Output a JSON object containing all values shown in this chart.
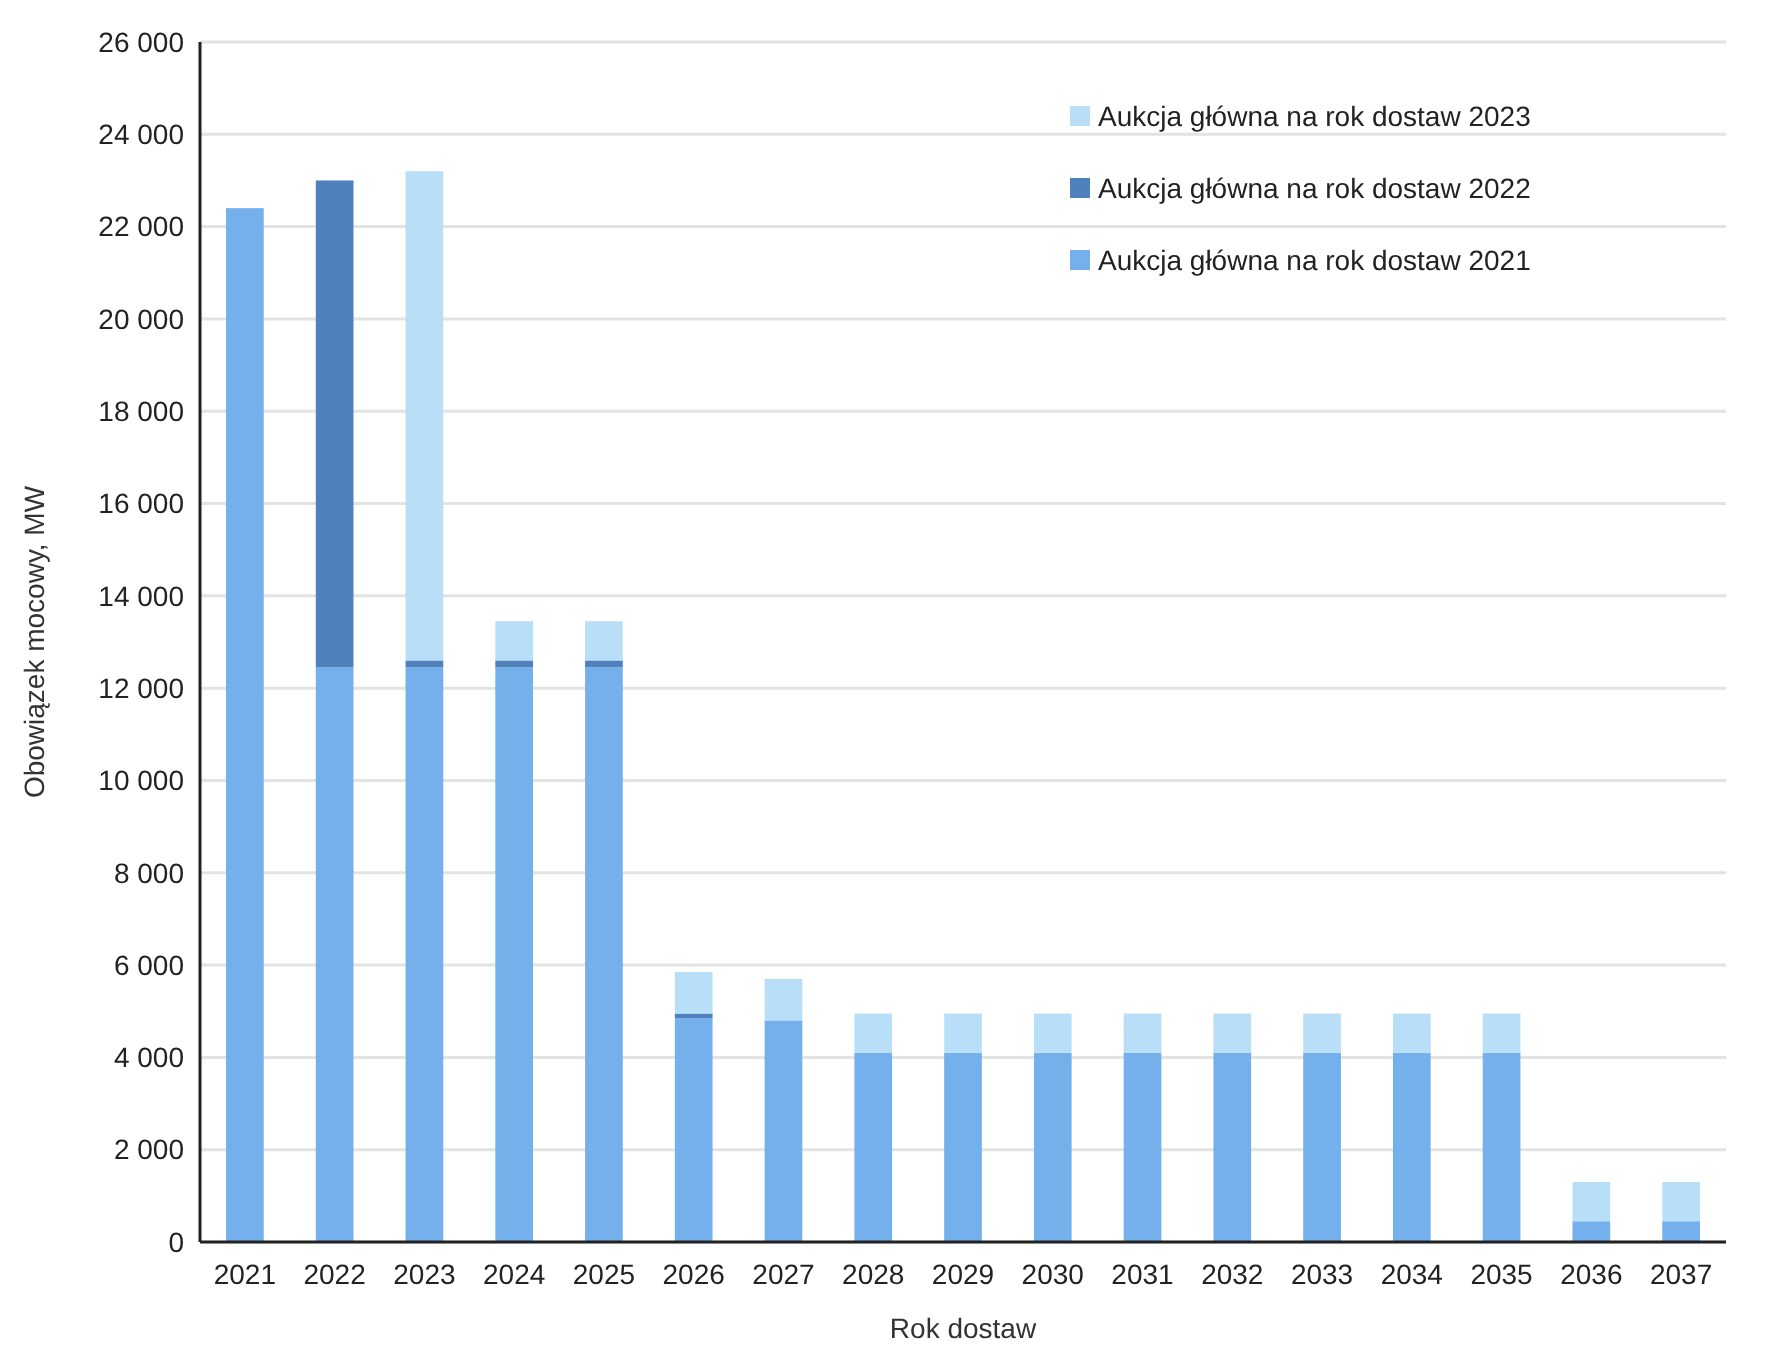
{
  "chart_data": {
    "type": "bar",
    "stacked": true,
    "xlabel": "Rok dostaw",
    "ylabel": "Obowiązek mocowy, MW",
    "categories": [
      "2021",
      "2022",
      "2023",
      "2024",
      "2025",
      "2026",
      "2027",
      "2028",
      "2029",
      "2030",
      "2031",
      "2032",
      "2033",
      "2034",
      "2035",
      "2036",
      "2037"
    ],
    "series": [
      {
        "name": "Aukcja główna na rok dostaw 2021",
        "color": "#74b0ec",
        "values": [
          22400,
          12450,
          12450,
          12450,
          12450,
          4850,
          4800,
          4100,
          4100,
          4100,
          4100,
          4100,
          4100,
          4100,
          4100,
          450,
          450
        ]
      },
      {
        "name": "Aukcja główna na rok dostaw 2022",
        "color": "#4f81bd",
        "values": [
          null,
          10550,
          150,
          150,
          150,
          100,
          null,
          null,
          null,
          null,
          null,
          null,
          null,
          null,
          null,
          null,
          null
        ]
      },
      {
        "name": "Aukcja główna na rok dostaw 2023",
        "color": "#b8dff7",
        "values": [
          null,
          null,
          10600,
          850,
          850,
          900,
          900,
          850,
          850,
          850,
          850,
          850,
          850,
          850,
          850,
          850,
          850
        ]
      }
    ],
    "ylim": [
      0,
      26000
    ],
    "yticks": [
      {
        "value": 0,
        "label": "0"
      },
      {
        "value": 2000,
        "label": "2 000"
      },
      {
        "value": 4000,
        "label": "4 000"
      },
      {
        "value": 6000,
        "label": "6 000"
      },
      {
        "value": 8000,
        "label": "8 000"
      },
      {
        "value": 10000,
        "label": "10 000"
      },
      {
        "value": 12000,
        "label": "12 000"
      },
      {
        "value": 14000,
        "label": "14 000"
      },
      {
        "value": 16000,
        "label": "16 000"
      },
      {
        "value": 18000,
        "label": "18 000"
      },
      {
        "value": 20000,
        "label": "20 000"
      },
      {
        "value": 22000,
        "label": "22 000"
      },
      {
        "value": 24000,
        "label": "24 000"
      },
      {
        "value": 26000,
        "label": "26 000"
      }
    ],
    "grid": "y",
    "legend": "top right"
  }
}
